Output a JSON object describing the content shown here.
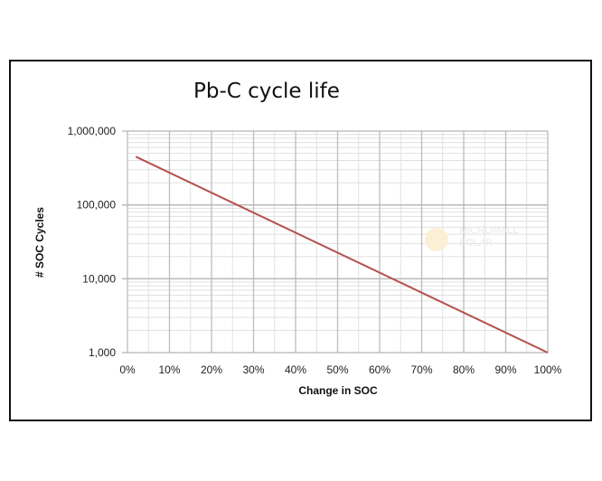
{
  "chart_data": {
    "type": "line",
    "title": "Pb-C cycle life",
    "xlabel": "Change in SOC",
    "ylabel": "# SOC Cycles",
    "x_ticks": [
      "0%",
      "10%",
      "20%",
      "30%",
      "40%",
      "50%",
      "60%",
      "70%",
      "80%",
      "90%",
      "100%"
    ],
    "y_ticks": [
      "1,000",
      "10,000",
      "100,000",
      "1,000,000"
    ],
    "xlim": [
      0,
      100
    ],
    "ylim": [
      1000,
      1000000
    ],
    "y_scale": "log",
    "grid": true,
    "series": [
      {
        "color": "#b5524f",
        "x": [
          2,
          100
        ],
        "y": [
          450000,
          1000
        ]
      }
    ]
  },
  "watermark": {
    "line1": "MICROMALL",
    "line2": "SOLAR"
  }
}
